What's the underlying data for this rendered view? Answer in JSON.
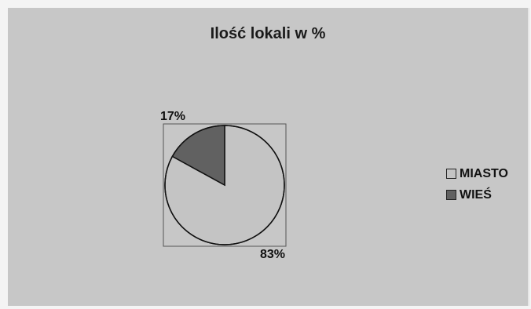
{
  "chart_data": {
    "type": "pie",
    "title": "Ilość lokali w %",
    "categories": [
      "MIASTO",
      "WIEŚ"
    ],
    "values": [
      83,
      17
    ],
    "data_labels": [
      "83%",
      "17%"
    ],
    "colors": [
      "#c4c4c4",
      "#616161"
    ],
    "legend_position": "right"
  }
}
